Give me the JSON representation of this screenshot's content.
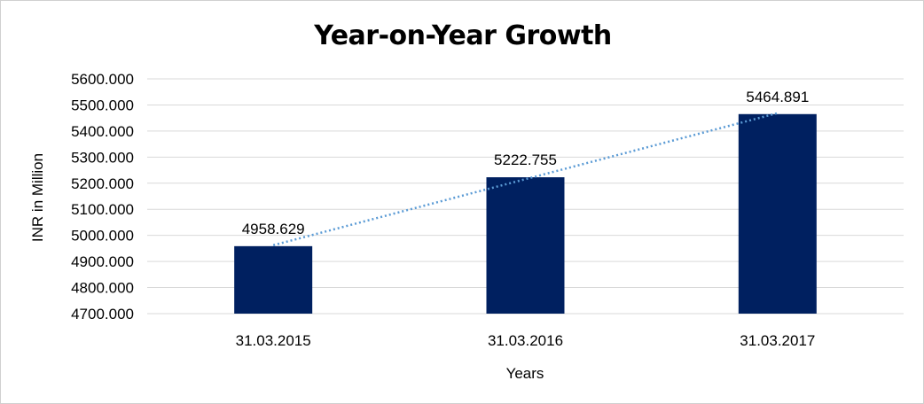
{
  "chart_data": {
    "type": "bar",
    "title": "Year-on-Year Growth",
    "xlabel": "Years",
    "ylabel": "INR in Million",
    "categories": [
      "31.03.2015",
      "31.03.2016",
      "31.03.2017"
    ],
    "values": [
      4958.629,
      5222.755,
      5464.891
    ],
    "data_labels": [
      "4958.629",
      "5222.755",
      "5464.891"
    ],
    "ylim": [
      4700,
      5600
    ],
    "yticks": [
      4700,
      4800,
      4900,
      5000,
      5100,
      5200,
      5300,
      5400,
      5500,
      5600
    ],
    "ytick_labels": [
      "4700.000",
      "4800.000",
      "4900.000",
      "5000.000",
      "5100.000",
      "5200.000",
      "5300.000",
      "5400.000",
      "5500.000",
      "5600.000"
    ],
    "grid": true,
    "trendline": "linear",
    "legend": "none",
    "colors": {
      "bar": "#002060",
      "trendline": "#5b9bd5",
      "grid": "#d9d9d9"
    }
  }
}
